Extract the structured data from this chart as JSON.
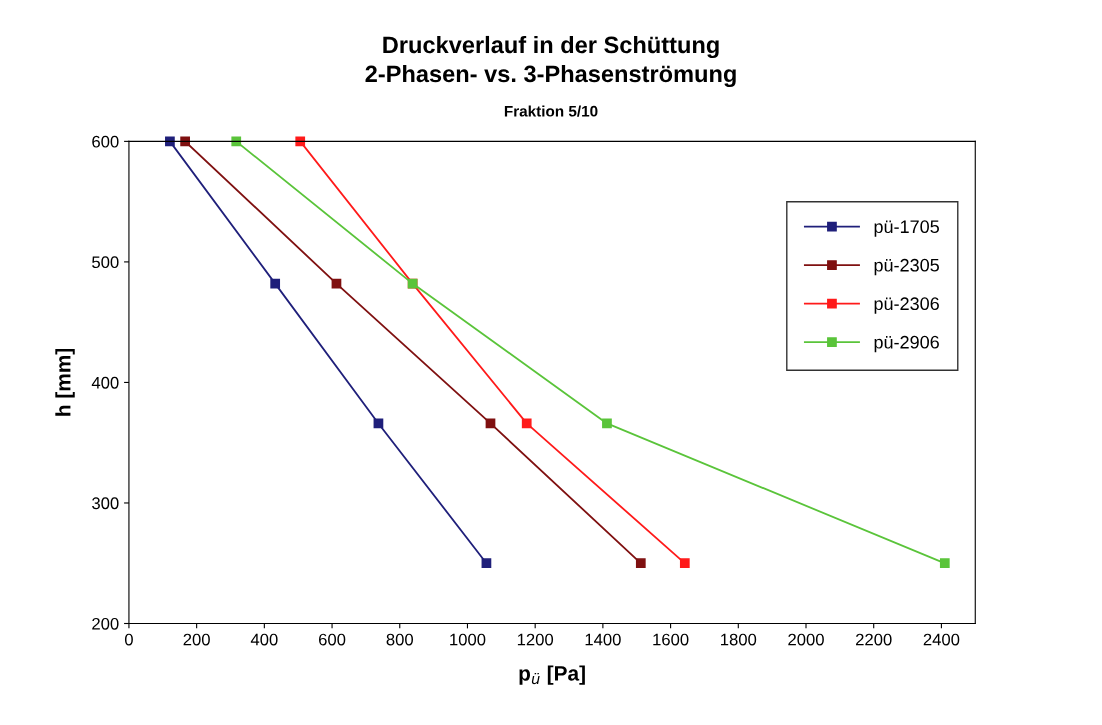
{
  "chart_data": {
    "type": "line",
    "title": "Druckverlauf in der Schüttung\n2-Phasen- vs. 3-Phasenströmung",
    "subtitle": "Fraktion 5/10",
    "xlabel": "p$_{ü}$ [Pa]",
    "ylabel": "h [mm]",
    "xlim": [
      0,
      2500
    ],
    "xticks": [
      0,
      200,
      400,
      600,
      800,
      1000,
      1200,
      1400,
      1600,
      1800,
      2000,
      2200,
      2400
    ],
    "ylim": [
      200,
      600
    ],
    "yticks": [
      200,
      300,
      400,
      500,
      600
    ],
    "grid": false,
    "legend": "right",
    "marker": "square",
    "line_style": "solid",
    "series": [
      {
        "name": "pü-1705",
        "color": "#1f1f7a",
        "x": [
          121,
          432,
          737,
          1056
        ],
        "values": [
          600,
          482,
          366,
          250
        ]
      },
      {
        "name": "pü-2305",
        "color": "#7f1010",
        "x": [
          166,
          613,
          1068,
          1512
        ],
        "values": [
          600,
          482,
          366,
          250
        ]
      },
      {
        "name": "pü-2306",
        "color": "#ff1a1a",
        "x": [
          506,
          838,
          1175,
          1642
        ],
        "values": [
          600,
          482,
          366,
          250
        ]
      },
      {
        "name": "pü-2906",
        "color": "#5ac43a",
        "x": [
          317,
          838,
          1412,
          2410
        ],
        "values": [
          600,
          482,
          366,
          250
        ]
      }
    ]
  }
}
